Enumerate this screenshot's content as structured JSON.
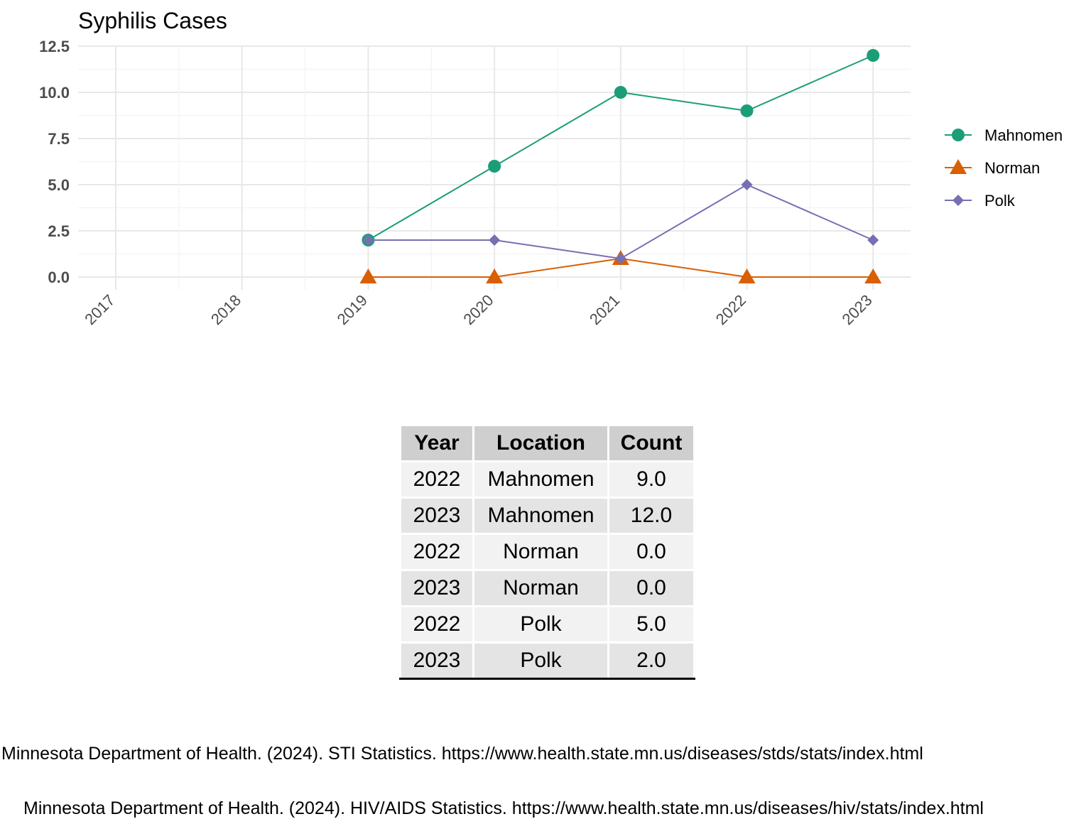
{
  "chart_data": {
    "type": "line",
    "title": "Syphilis Cases",
    "xlabel": "",
    "ylabel": "",
    "x": [
      "2017",
      "2018",
      "2019",
      "2020",
      "2021",
      "2022",
      "2023"
    ],
    "ylim": [
      0,
      12.5
    ],
    "yticks": [
      "0.0",
      "2.5",
      "5.0",
      "7.5",
      "10.0",
      "12.5"
    ],
    "grid": true,
    "legend_position": "right",
    "series": [
      {
        "name": "Mahnomen",
        "color": "#1b9e77",
        "marker": "circle",
        "points": [
          {
            "x": "2019",
            "y": 2
          },
          {
            "x": "2020",
            "y": 6
          },
          {
            "x": "2021",
            "y": 10
          },
          {
            "x": "2022",
            "y": 9
          },
          {
            "x": "2023",
            "y": 12
          }
        ]
      },
      {
        "name": "Norman",
        "color": "#d95f02",
        "marker": "triangle",
        "points": [
          {
            "x": "2019",
            "y": 0
          },
          {
            "x": "2020",
            "y": 0
          },
          {
            "x": "2021",
            "y": 1
          },
          {
            "x": "2022",
            "y": 0
          },
          {
            "x": "2023",
            "y": 0
          }
        ]
      },
      {
        "name": "Polk",
        "color": "#7570b3",
        "marker": "diamond",
        "points": [
          {
            "x": "2019",
            "y": 2
          },
          {
            "x": "2020",
            "y": 2
          },
          {
            "x": "2021",
            "y": 1
          },
          {
            "x": "2022",
            "y": 5
          },
          {
            "x": "2023",
            "y": 2
          }
        ]
      }
    ]
  },
  "table": {
    "headers": [
      "Year",
      "Location",
      "Count"
    ],
    "rows": [
      [
        "2022",
        "Mahnomen",
        "9.0"
      ],
      [
        "2023",
        "Mahnomen",
        "12.0"
      ],
      [
        "2022",
        "Norman",
        "0.0"
      ],
      [
        "2023",
        "Norman",
        "0.0"
      ],
      [
        "2022",
        "Polk",
        "5.0"
      ],
      [
        "2023",
        "Polk",
        "2.0"
      ]
    ]
  },
  "sources": [
    "Minnesota Department of Health. (2024). STI Statistics. https://www.health.state.mn.us/diseases/stds/stats/index.html",
    "Minnesota Department of Health. (2024). HIV/AIDS Statistics. https://www.health.state.mn.us/diseases/hiv/stats/index.html"
  ]
}
